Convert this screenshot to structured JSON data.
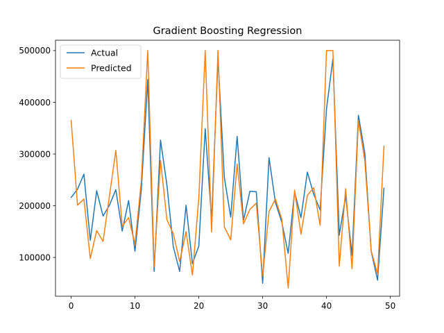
{
  "chart_data": {
    "type": "line",
    "title": "Gradient Boosting Regression",
    "xlabel": "",
    "ylabel": "",
    "xlim": [
      -2.45,
      51.45
    ],
    "ylim": [
      25000,
      520000
    ],
    "x_ticks": [
      0,
      10,
      20,
      30,
      40,
      50
    ],
    "y_ticks": [
      100000,
      200000,
      300000,
      400000,
      500000
    ],
    "grid": false,
    "legend_position": "top-left",
    "x": [
      0,
      1,
      2,
      3,
      4,
      5,
      6,
      7,
      8,
      9,
      10,
      11,
      12,
      13,
      14,
      15,
      16,
      17,
      18,
      19,
      20,
      21,
      22,
      23,
      24,
      25,
      26,
      27,
      28,
      29,
      30,
      31,
      32,
      33,
      34,
      35,
      36,
      37,
      38,
      39,
      40,
      41,
      42,
      43,
      44,
      45,
      46,
      47,
      48,
      49
    ],
    "series": [
      {
        "name": "Actual",
        "color": "#1f77b4",
        "values": [
          216000,
          232000,
          261000,
          133000,
          229000,
          180000,
          201000,
          231000,
          151000,
          210000,
          112000,
          232000,
          444000,
          73000,
          327000,
          240000,
          121000,
          73000,
          201000,
          88000,
          122000,
          349000,
          172000,
          484000,
          254000,
          178000,
          334000,
          172000,
          228000,
          227000,
          50000,
          293000,
          206000,
          168000,
          108000,
          227000,
          177000,
          265000,
          222000,
          192000,
          387000,
          484000,
          143000,
          219000,
          104000,
          375000,
          302000,
          112000,
          56000,
          234000
        ]
      },
      {
        "name": "Predicted",
        "color": "#ff7f0e",
        "values": [
          365000,
          201000,
          213000,
          98000,
          152000,
          131000,
          219000,
          307000,
          160000,
          177000,
          126000,
          249000,
          500000,
          82000,
          288000,
          173000,
          146000,
          92000,
          150000,
          66000,
          215000,
          500000,
          149000,
          500000,
          159000,
          134000,
          281000,
          165000,
          193000,
          205000,
          64000,
          189000,
          213000,
          174000,
          41000,
          230000,
          145000,
          220000,
          235000,
          162000,
          500000,
          500000,
          83000,
          233000,
          78000,
          365000,
          287000,
          113000,
          68000,
          315000
        ]
      }
    ]
  }
}
